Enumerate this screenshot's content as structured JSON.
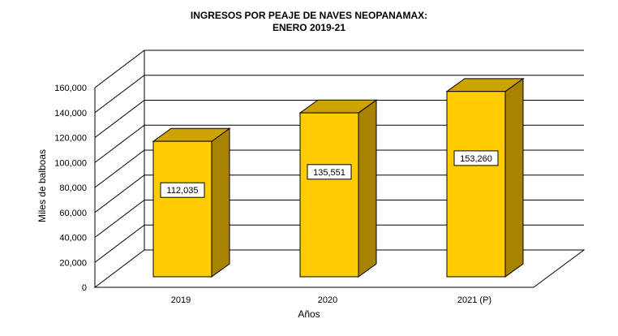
{
  "chart_data": {
    "type": "bar",
    "title": [
      "INGRESOS POR PEAJE DE NAVES NEOPANAMAX:",
      "ENERO 2019-21"
    ],
    "xlabel": "Años",
    "ylabel": "Miles de balboas",
    "categories": [
      "2019",
      "2020",
      "2021 (P)"
    ],
    "values": [
      112035,
      135551,
      153260
    ],
    "value_labels": [
      "112,035",
      "135,551",
      "153,260"
    ],
    "ylim": [
      0,
      160000
    ],
    "yticks": [
      0,
      20000,
      40000,
      60000,
      80000,
      100000,
      120000,
      140000,
      160000
    ],
    "ytick_labels": [
      "0",
      "20,000",
      "40,000",
      "60,000",
      "80,000",
      "100,000",
      "120,000",
      "140,000",
      "160,000"
    ],
    "grid": true,
    "style": "3d",
    "colors": {
      "bar_front": "#FFCC00",
      "bar_top": "#CCA300",
      "bar_side": "#A88300",
      "grid": "#000000"
    }
  }
}
